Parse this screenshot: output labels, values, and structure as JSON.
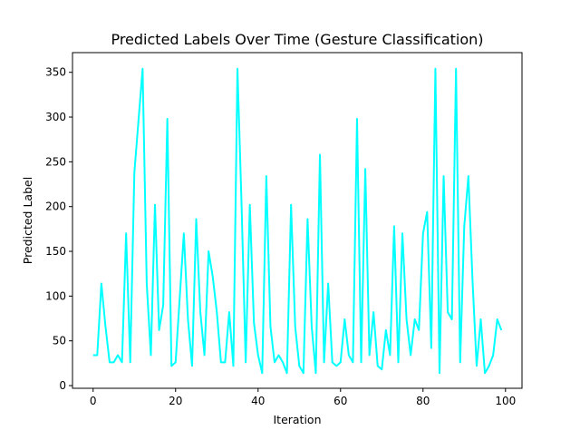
{
  "chart_data": {
    "type": "line",
    "title": "Predicted Labels Over Time (Gesture Classification)",
    "xlabel": "Iteration",
    "ylabel": "Predicted Label",
    "xlim": [
      -5,
      104
    ],
    "ylim": [
      -3,
      372
    ],
    "xticks": [
      0,
      20,
      40,
      60,
      80,
      100
    ],
    "yticks": [
      0,
      50,
      100,
      150,
      200,
      250,
      300,
      350
    ],
    "grid": false,
    "legend": "none",
    "series": [
      {
        "color": "#00ffff",
        "x": [
          0,
          1,
          2,
          3,
          4,
          5,
          6,
          7,
          8,
          9,
          10,
          11,
          12,
          13,
          14,
          15,
          16,
          17,
          18,
          19,
          20,
          21,
          22,
          23,
          24,
          25,
          26,
          27,
          28,
          29,
          30,
          31,
          32,
          33,
          34,
          35,
          36,
          37,
          38,
          39,
          40,
          41,
          42,
          43,
          44,
          45,
          46,
          47,
          48,
          49,
          50,
          51,
          52,
          53,
          54,
          55,
          56,
          57,
          58,
          59,
          60,
          61,
          62,
          63,
          64,
          65,
          66,
          67,
          68,
          69,
          70,
          71,
          72,
          73,
          74,
          75,
          76,
          77,
          78,
          79,
          80,
          81,
          82,
          83,
          84,
          85,
          86,
          87,
          88,
          89,
          90,
          91,
          92,
          93,
          94,
          95,
          96,
          97,
          98,
          99
        ],
        "values": [
          34,
          34,
          114,
          66,
          26,
          26,
          34,
          26,
          170,
          26,
          238,
          296,
          354,
          114,
          34,
          202,
          62,
          90,
          298,
          22,
          26,
          98,
          170,
          74,
          22,
          186,
          82,
          34,
          150,
          122,
          82,
          26,
          26,
          82,
          22,
          354,
          202,
          26,
          202,
          70,
          34,
          14,
          234,
          66,
          26,
          34,
          26,
          14,
          202,
          66,
          22,
          14,
          186,
          66,
          14,
          258,
          26,
          114,
          26,
          22,
          26,
          74,
          34,
          26,
          298,
          26,
          242,
          34,
          82,
          22,
          18,
          62,
          34,
          178,
          26,
          170,
          74,
          34,
          74,
          62,
          170,
          194,
          42,
          354,
          14,
          234,
          82,
          74,
          354,
          26,
          178,
          234,
          118,
          22,
          74,
          14,
          22,
          34,
          74,
          62
        ]
      }
    ]
  }
}
